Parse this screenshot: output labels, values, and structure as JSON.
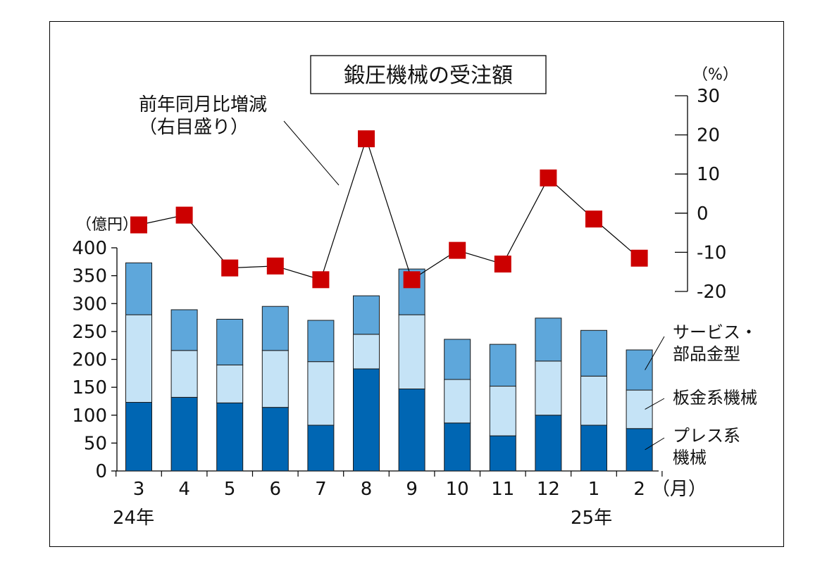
{
  "chart_data": {
    "type": "bar",
    "title": "鍛圧機械の受注額",
    "left_unit": "（億円）",
    "right_unit": "（%）",
    "month_unit": "（月）",
    "year_labels": [
      "24年",
      "25年"
    ],
    "categories": [
      "3",
      "4",
      "5",
      "6",
      "7",
      "8",
      "9",
      "10",
      "11",
      "12",
      "1",
      "2"
    ],
    "series": [
      {
        "name": "プレス系\n機械",
        "values": [
          123,
          132,
          122,
          114,
          82,
          183,
          147,
          86,
          63,
          100,
          82,
          76
        ],
        "color": "#0066b3"
      },
      {
        "name": "板金系機械",
        "values": [
          157,
          84,
          68,
          102,
          114,
          62,
          133,
          78,
          89,
          97,
          88,
          69
        ],
        "color": "#c5e3f6"
      },
      {
        "name": "サービス・\n部品金型",
        "values": [
          93,
          73,
          82,
          79,
          74,
          69,
          82,
          72,
          75,
          77,
          82,
          72
        ],
        "color": "#5ea7db"
      }
    ],
    "line_series": {
      "name": "前年同月比増減\n（右目盛り）",
      "values": [
        -3,
        -0.5,
        -14,
        -13.5,
        -17,
        19,
        -17,
        -9.5,
        -13,
        9,
        -1.5,
        -11.5
      ],
      "color": "#cc0000"
    },
    "y_left": {
      "min": 0,
      "max": 400,
      "ticks": [
        0,
        50,
        100,
        150,
        200,
        250,
        300,
        350,
        400
      ]
    },
    "y_right": {
      "min": -20,
      "max": 30,
      "ticks": [
        -20,
        -10,
        0,
        10,
        20,
        30
      ]
    },
    "grid": false,
    "legend": "right"
  }
}
